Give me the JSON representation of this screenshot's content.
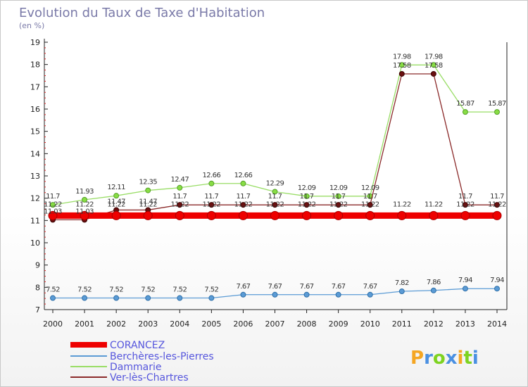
{
  "chart_data": {
    "type": "line",
    "title": "Evolution du Taux de Taxe d'Habitation",
    "subtitle": "(en %)",
    "xlabel": "",
    "ylabel": "",
    "x": [
      "2000",
      "2001",
      "2002",
      "2003",
      "2004",
      "2005",
      "2006",
      "2007",
      "2008",
      "2009",
      "2010",
      "2011",
      "2012",
      "2013",
      "2014"
    ],
    "ylim": [
      7,
      19
    ],
    "yticks": [
      "7",
      "8",
      "9",
      "10",
      "11",
      "12",
      "13",
      "14",
      "15",
      "16",
      "17",
      "18",
      "19"
    ],
    "grid": false,
    "legend": "bottom-left",
    "series": [
      {
        "name": "CORANCEZ",
        "color": "#ee0000",
        "values": [
          11.22,
          11.22,
          11.22,
          11.22,
          11.22,
          11.22,
          11.22,
          11.22,
          11.22,
          11.22,
          11.22,
          11.22,
          11.22,
          11.22,
          11.22
        ],
        "labels": [
          "11.22",
          "11.22",
          "11.22",
          "11.22",
          "11.22",
          "11.22",
          "11.22",
          "11.22",
          "11.22",
          "11.22",
          "11.22",
          "11.22",
          "11.22",
          "11.22",
          "11.22"
        ]
      },
      {
        "name": "Berchères-les-Pierres",
        "color": "#5b9bd5",
        "values": [
          7.52,
          7.52,
          7.52,
          7.52,
          7.52,
          7.52,
          7.67,
          7.67,
          7.67,
          7.67,
          7.67,
          7.82,
          7.86,
          7.94,
          7.94
        ],
        "labels": [
          "7.52",
          "7.52",
          "7.52",
          "7.52",
          "7.52",
          "7.52",
          "7.67",
          "7.67",
          "7.67",
          "7.67",
          "7.67",
          "7.82",
          "7.86",
          "7.94",
          "7.94"
        ]
      },
      {
        "name": "Dammarie",
        "color": "#99dd66",
        "values": [
          11.7,
          11.93,
          12.11,
          12.35,
          12.47,
          12.66,
          12.66,
          12.29,
          12.09,
          12.09,
          12.09,
          17.98,
          17.98,
          15.87,
          15.87
        ],
        "labels": [
          "11.7",
          "11.93",
          "12.11",
          "12.35",
          "12.47",
          "12.66",
          "12.66",
          "12.29",
          "12.09",
          "12.09",
          "12.09",
          "17.98",
          "17.98",
          "15.87",
          "15.87"
        ]
      },
      {
        "name": "Ver-lès-Chartres",
        "color": "#8b2a2a",
        "values": [
          11.03,
          11.03,
          11.47,
          11.47,
          11.7,
          11.7,
          11.7,
          11.7,
          11.7,
          11.7,
          11.7,
          17.58,
          17.58,
          11.7,
          11.7
        ],
        "labels": [
          "11.03",
          "11.03",
          "11.47",
          "11.47",
          "11.7",
          "11.7",
          "11.7",
          "11.7",
          "11.7",
          "11.7",
          "11.7",
          "17.58",
          "17.58",
          "11.7",
          "11.7"
        ]
      }
    ]
  },
  "branding": {
    "logo_letters": [
      "P",
      "r",
      "o",
      "x",
      "i",
      "t",
      "i"
    ],
    "logo_colors": [
      "#f5a623",
      "#4a90e2",
      "#7ed321",
      "#4a90e2",
      "#f5a623",
      "#7ed321",
      "#4a90e2"
    ]
  }
}
